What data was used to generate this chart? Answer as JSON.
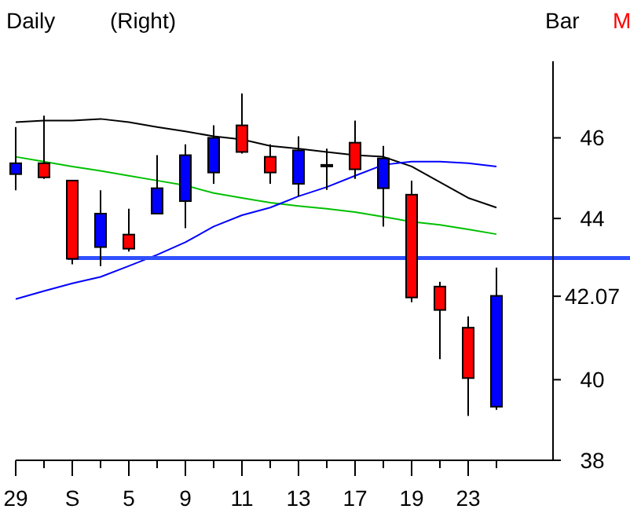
{
  "chart_data": {
    "type": "candlestick",
    "title": "Daily",
    "subtitle": "(Right)",
    "annotations": [
      "Bar",
      "M"
    ],
    "categories": [
      "29",
      null,
      "S",
      null,
      "5",
      null,
      "9",
      null,
      "11",
      null,
      "13",
      null,
      "17",
      null,
      "19",
      null,
      "23",
      null
    ],
    "ohlc": [
      [
        45.1,
        46.27,
        44.7,
        45.37
      ],
      [
        45.37,
        46.55,
        44.98,
        45.02
      ],
      [
        44.94,
        44.94,
        42.86,
        43.0
      ],
      [
        43.29,
        44.7,
        42.82,
        44.12
      ],
      [
        43.6,
        44.24,
        43.18,
        43.25
      ],
      [
        44.12,
        45.57,
        44.12,
        44.75
      ],
      [
        44.43,
        45.84,
        43.76,
        45.57
      ],
      [
        45.14,
        46.31,
        44.86,
        46.0
      ],
      [
        46.31,
        47.1,
        45.61,
        45.65
      ],
      [
        45.53,
        45.84,
        44.86,
        45.14
      ],
      [
        44.86,
        46.04,
        44.55,
        45.69
      ],
      [
        45.33,
        45.73,
        44.71,
        45.33
      ],
      [
        45.88,
        46.43,
        44.98,
        45.22
      ],
      [
        44.75,
        45.8,
        43.8,
        45.49
      ],
      [
        44.59,
        44.94,
        41.92,
        42.04
      ],
      [
        42.31,
        42.43,
        40.51,
        41.73
      ],
      [
        41.29,
        41.57,
        39.1,
        40.04
      ],
      [
        39.33,
        42.78,
        39.25,
        42.08
      ]
    ],
    "colors": [
      "#0000ff",
      "#ff0000",
      "#ff0000",
      "#0000ff",
      "#ff0000",
      "#0000ff",
      "#0000ff",
      "#0000ff",
      "#ff0000",
      "#ff0000",
      "#0000ff",
      "#000000",
      "#ff0000",
      "#0000ff",
      "#ff0000",
      "#ff0000",
      "#ff0000",
      "#0000ff"
    ],
    "series": [
      {
        "type": "line",
        "color": "#000000",
        "values": [
          46.39,
          46.43,
          46.43,
          46.47,
          46.39,
          46.27,
          46.16,
          46.04,
          45.96,
          45.8,
          45.73,
          45.65,
          45.57,
          45.53,
          45.29,
          44.9,
          44.51,
          44.27
        ]
      },
      {
        "type": "line",
        "color": "#00c000",
        "values": [
          45.53,
          45.41,
          45.29,
          45.18,
          45.06,
          44.94,
          44.82,
          44.63,
          44.51,
          44.39,
          44.31,
          44.24,
          44.16,
          44.04,
          43.92,
          43.84,
          43.73,
          43.61
        ]
      },
      {
        "type": "line",
        "color": "#0000ff",
        "values": [
          42.0,
          42.2,
          42.39,
          42.55,
          42.82,
          43.1,
          43.41,
          43.8,
          44.08,
          44.27,
          44.55,
          44.78,
          45.06,
          45.33,
          45.41,
          45.41,
          45.37,
          45.29
        ]
      }
    ],
    "ylim": [
      38,
      47.9
    ],
    "yticks": [
      38,
      40,
      {
        "value": 42.07,
        "label": "42.07"
      },
      44,
      46
    ],
    "ref_lines": [
      {
        "axis": "y",
        "value": 43.02,
        "color": "#3050ff"
      }
    ],
    "grid": false,
    "marker": "none",
    "line_style": "solid"
  }
}
